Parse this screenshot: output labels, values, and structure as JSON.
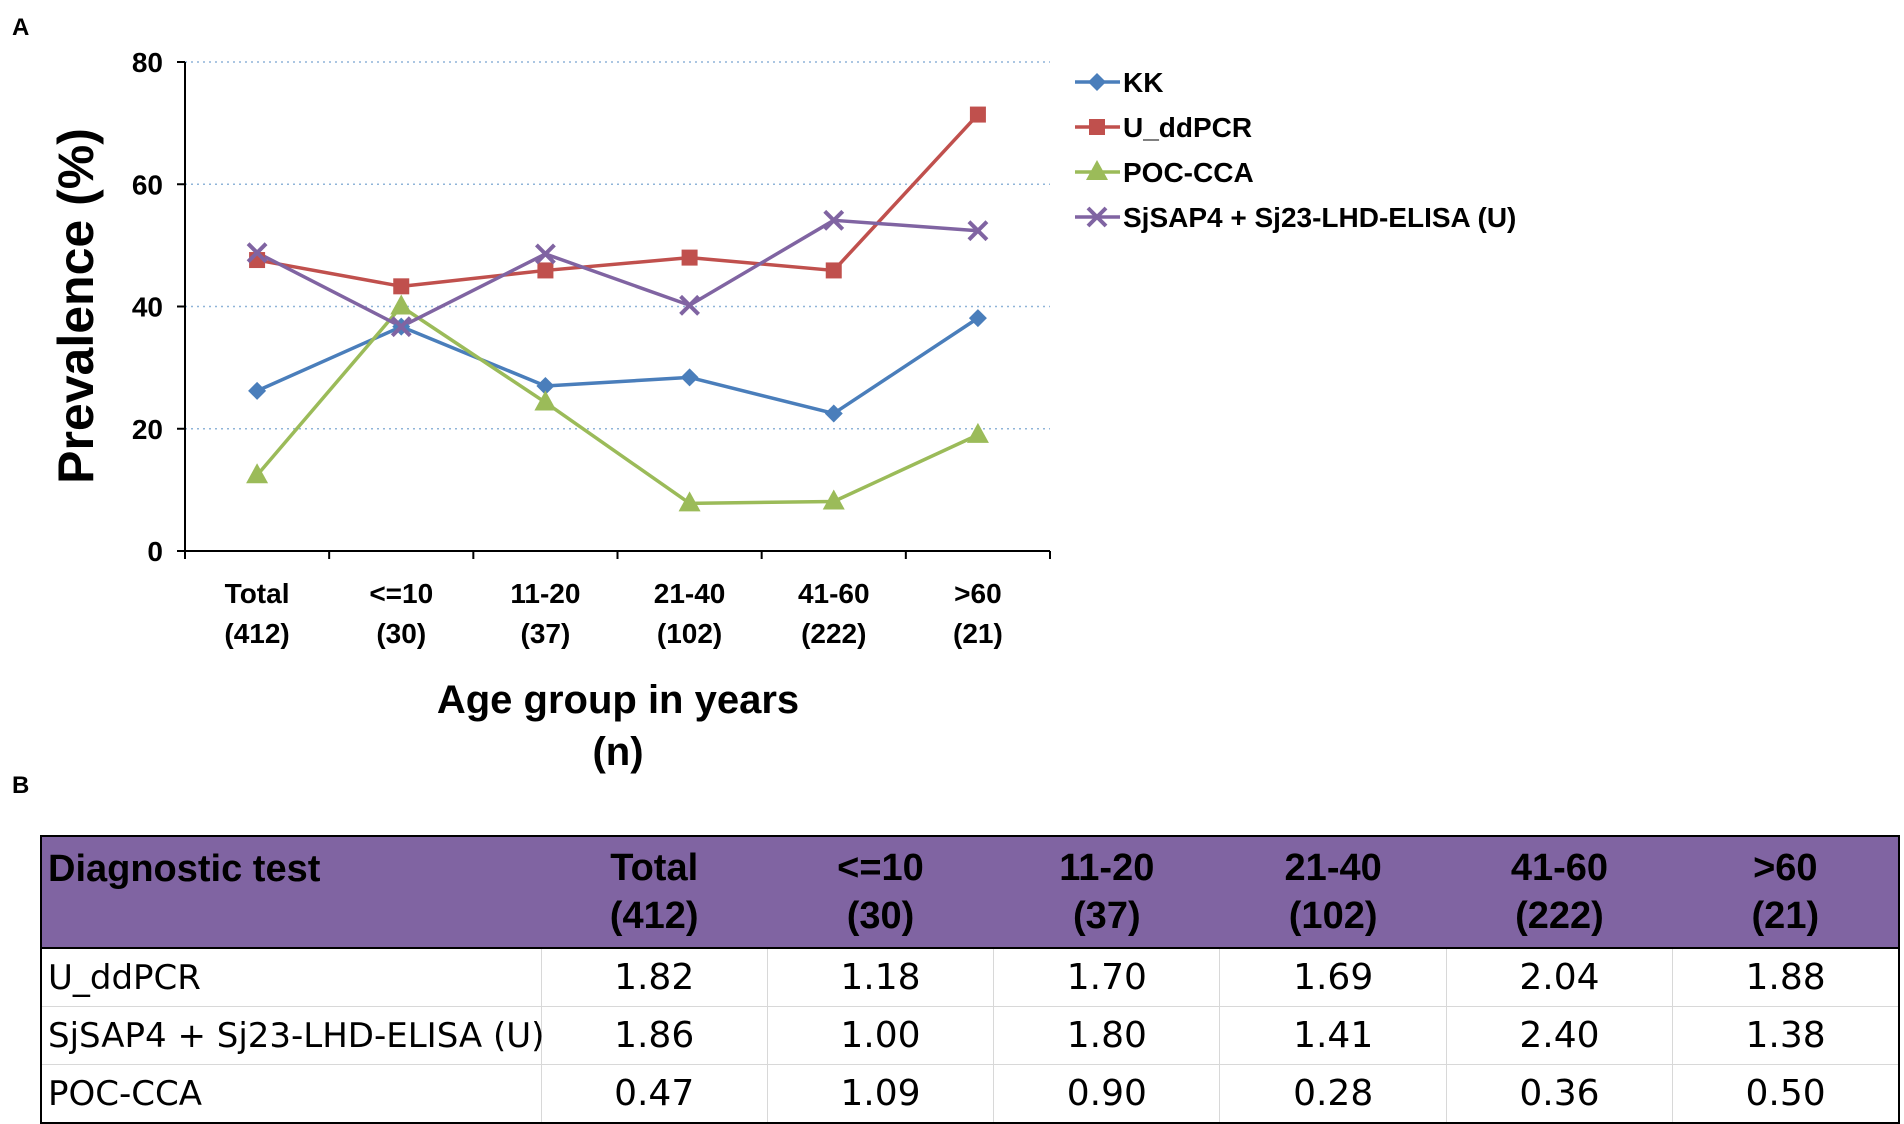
{
  "panel_a_label": "A",
  "panel_b_label": "B",
  "chart_data": {
    "type": "line",
    "title": "",
    "ylabel": "Prevalence (%)",
    "xlabel_line1": "Age group in years",
    "xlabel_line2": "(n)",
    "ylim": [
      0,
      80
    ],
    "yticks": [
      0,
      20,
      40,
      60,
      80
    ],
    "grid": "horizontal dotted",
    "legend_position": "top-right",
    "categories": [
      {
        "label": "Total",
        "n": "(412)"
      },
      {
        "label": "<=10",
        "n": "(30)"
      },
      {
        "label": "11-20",
        "n": "(37)"
      },
      {
        "label": "21-40",
        "n": "(102)"
      },
      {
        "label": "41-60",
        "n": "(222)"
      },
      {
        "label": ">60",
        "n": "(21)"
      }
    ],
    "series": [
      {
        "name": "KK",
        "color": "#4a7ebb",
        "marker": "diamond",
        "values": [
          26.2,
          36.7,
          27.0,
          28.4,
          22.5,
          38.1
        ]
      },
      {
        "name": "U_ddPCR",
        "color": "#c0504d",
        "marker": "square",
        "values": [
          47.6,
          43.3,
          45.9,
          48.0,
          45.9,
          71.4
        ]
      },
      {
        "name": "POC-CCA",
        "color": "#9bbb59",
        "marker": "triangle",
        "values": [
          12.4,
          40.0,
          24.3,
          7.8,
          8.1,
          19.0
        ]
      },
      {
        "name": "SjSAP4 + Sj23-LHD-ELISA (U)",
        "color": "#8064a2",
        "marker": "x",
        "values": [
          48.8,
          36.7,
          48.6,
          40.2,
          54.1,
          52.4
        ]
      }
    ]
  },
  "table": {
    "header": [
      {
        "line1": "Diagnostic test",
        "line2": ""
      },
      {
        "line1": "Total",
        "line2": "(412)"
      },
      {
        "line1": "<=10",
        "line2": "(30)"
      },
      {
        "line1": "11-20",
        "line2": "(37)"
      },
      {
        "line1": "21-40",
        "line2": "(102)"
      },
      {
        "line1": "41-60",
        "line2": "(222)"
      },
      {
        "line1": ">60",
        "line2": "(21)"
      }
    ],
    "rows": [
      [
        "U_ddPCR",
        "1.82",
        "1.18",
        "1.70",
        "1.69",
        "2.04",
        "1.88"
      ],
      [
        "SjSAP4 + Sj23-LHD-ELISA (U)",
        "1.86",
        "1.00",
        "1.80",
        "1.41",
        "2.40",
        "1.38"
      ],
      [
        "POC-CCA",
        "0.47",
        "1.09",
        "0.90",
        "0.28",
        "0.36",
        "0.50"
      ]
    ]
  }
}
